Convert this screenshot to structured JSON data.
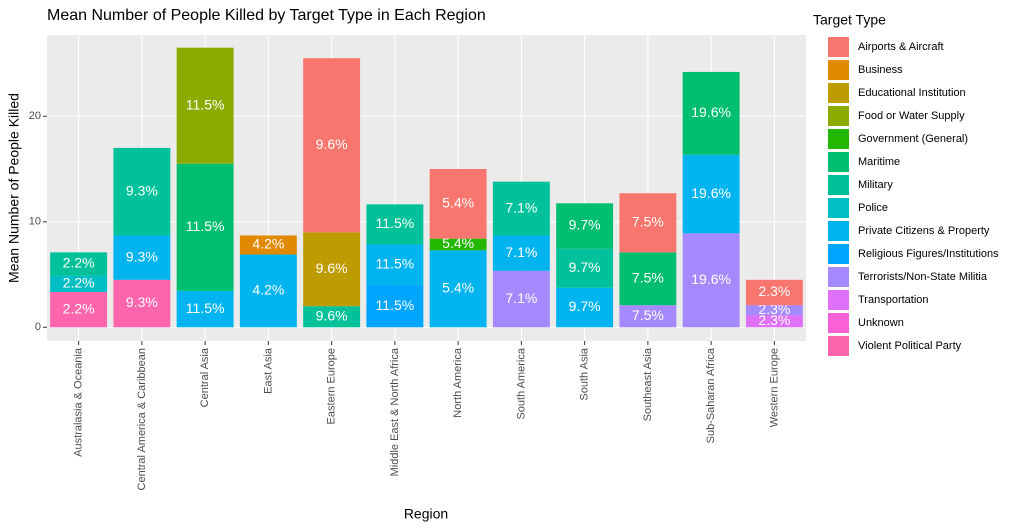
{
  "chart_data": {
    "type": "bar",
    "stacked": true,
    "title": "Mean Number of People Killed by Target Type in Each Region",
    "x_label": "Region",
    "y_label": "Mean Number of People Killed",
    "legend_title": "Target Type",
    "categories": [
      "Australasia & Oceania",
      "Central America & Caribbean",
      "Central Asia",
      "East Asia",
      "Eastern Europe",
      "Middle East & North Africa",
      "North America",
      "South America",
      "South Asia",
      "Southeast Asia",
      "Sub-Saharan Africa",
      "Western Europe"
    ],
    "ylim": [
      -1.3,
      27.7
    ],
    "yticks": [
      0,
      10,
      20
    ],
    "grid": true,
    "series": [
      {
        "name": "Airports & Aircraft",
        "color": "#F8766D",
        "values": [
          null,
          null,
          null,
          null,
          16.5,
          null,
          6.6,
          null,
          null,
          5.6,
          null,
          2.4
        ],
        "labels": [
          null,
          null,
          null,
          null,
          "9.6%",
          null,
          "5.4%",
          null,
          null,
          "7.5%",
          null,
          "2.3%"
        ]
      },
      {
        "name": "Business",
        "color": "#E18A00",
        "values": [
          null,
          null,
          null,
          1.8,
          null,
          null,
          null,
          null,
          null,
          null,
          null,
          null
        ],
        "labels": [
          null,
          null,
          null,
          "4.2%",
          null,
          null,
          null,
          null,
          null,
          null,
          null,
          null
        ]
      },
      {
        "name": "Educational Institution",
        "color": "#BE9C00",
        "values": [
          null,
          null,
          null,
          null,
          7.0,
          null,
          null,
          null,
          null,
          null,
          null,
          null
        ],
        "labels": [
          null,
          null,
          null,
          null,
          "9.6%",
          null,
          null,
          null,
          null,
          null,
          null,
          null
        ]
      },
      {
        "name": "Food or Water Supply",
        "color": "#8CAB00",
        "values": [
          null,
          null,
          11.0,
          null,
          null,
          null,
          null,
          null,
          null,
          null,
          null,
          null
        ],
        "labels": [
          null,
          null,
          "11.5%",
          null,
          null,
          null,
          null,
          null,
          null,
          null,
          null,
          null
        ]
      },
      {
        "name": "Government (General)",
        "color": "#24B700",
        "values": [
          null,
          null,
          null,
          null,
          null,
          null,
          1.1,
          null,
          null,
          null,
          null,
          null
        ],
        "labels": [
          null,
          null,
          null,
          null,
          null,
          null,
          "5.4%",
          null,
          null,
          null,
          null,
          null
        ]
      },
      {
        "name": "Maritime",
        "color": "#00BE70",
        "values": [
          null,
          null,
          12.05,
          null,
          null,
          null,
          null,
          null,
          4.3,
          5.0,
          7.85,
          null
        ],
        "labels": [
          null,
          null,
          "11.5%",
          null,
          null,
          null,
          null,
          null,
          "9.7%",
          "7.5%",
          "19.6%",
          null
        ]
      },
      {
        "name": "Military",
        "color": "#00C19A",
        "values": [
          2.2,
          8.3,
          null,
          null,
          2.0,
          3.8,
          null,
          5.1,
          3.7,
          null,
          null,
          null
        ],
        "labels": [
          "2.2%",
          "9.3%",
          null,
          null,
          "9.6%",
          "11.5%",
          null,
          "7.1%",
          "9.7%",
          null,
          null,
          null
        ]
      },
      {
        "name": "Police",
        "color": "#00BFC4",
        "values": [
          1.55,
          null,
          null,
          null,
          null,
          null,
          null,
          null,
          null,
          null,
          null,
          null
        ],
        "labels": [
          "2.2%",
          null,
          null,
          null,
          null,
          null,
          null,
          null,
          null,
          null,
          null,
          null
        ]
      },
      {
        "name": "Private Citizens & Property",
        "color": "#00B4EF",
        "values": [
          null,
          4.2,
          3.45,
          6.9,
          null,
          3.85,
          7.3,
          3.35,
          3.75,
          null,
          7.45,
          null
        ],
        "labels": [
          null,
          "9.3%",
          "11.5%",
          "4.2%",
          null,
          "11.5%",
          "5.4%",
          "7.1%",
          "9.7%",
          null,
          "19.6%",
          null
        ]
      },
      {
        "name": "Religious Figures/Institutions",
        "color": "#00A5FF",
        "values": [
          null,
          null,
          null,
          null,
          null,
          4.0,
          null,
          null,
          null,
          null,
          null,
          null
        ],
        "labels": [
          null,
          null,
          null,
          null,
          null,
          "11.5%",
          null,
          null,
          null,
          null,
          null,
          null
        ]
      },
      {
        "name": "Terrorists/Non-State Militia",
        "color": "#A58AFF",
        "values": [
          null,
          null,
          null,
          null,
          null,
          null,
          null,
          5.35,
          null,
          2.1,
          8.9,
          0.95
        ],
        "labels": [
          null,
          null,
          null,
          null,
          null,
          null,
          null,
          "7.1%",
          null,
          "7.5%",
          "19.6%",
          "2.3%"
        ]
      },
      {
        "name": "Transportation",
        "color": "#DF70F8",
        "values": [
          null,
          null,
          null,
          null,
          null,
          null,
          null,
          null,
          null,
          null,
          null,
          1.15
        ],
        "labels": [
          null,
          null,
          null,
          null,
          null,
          null,
          null,
          null,
          null,
          null,
          null,
          "2.3%"
        ]
      },
      {
        "name": "Unknown",
        "color": "#FB61D7",
        "values": [
          null,
          null,
          null,
          null,
          null,
          null,
          null,
          null,
          null,
          null,
          null,
          null
        ],
        "labels": [
          null,
          null,
          null,
          null,
          null,
          null,
          null,
          null,
          null,
          null,
          null,
          null
        ]
      },
      {
        "name": "Violent Political Party",
        "color": "#FF65AC",
        "values": [
          3.35,
          4.5,
          null,
          null,
          null,
          null,
          null,
          null,
          null,
          null,
          null,
          null
        ],
        "labels": [
          "2.2%",
          "9.3%",
          null,
          null,
          null,
          null,
          null,
          null,
          null,
          null,
          null,
          null
        ]
      }
    ]
  }
}
